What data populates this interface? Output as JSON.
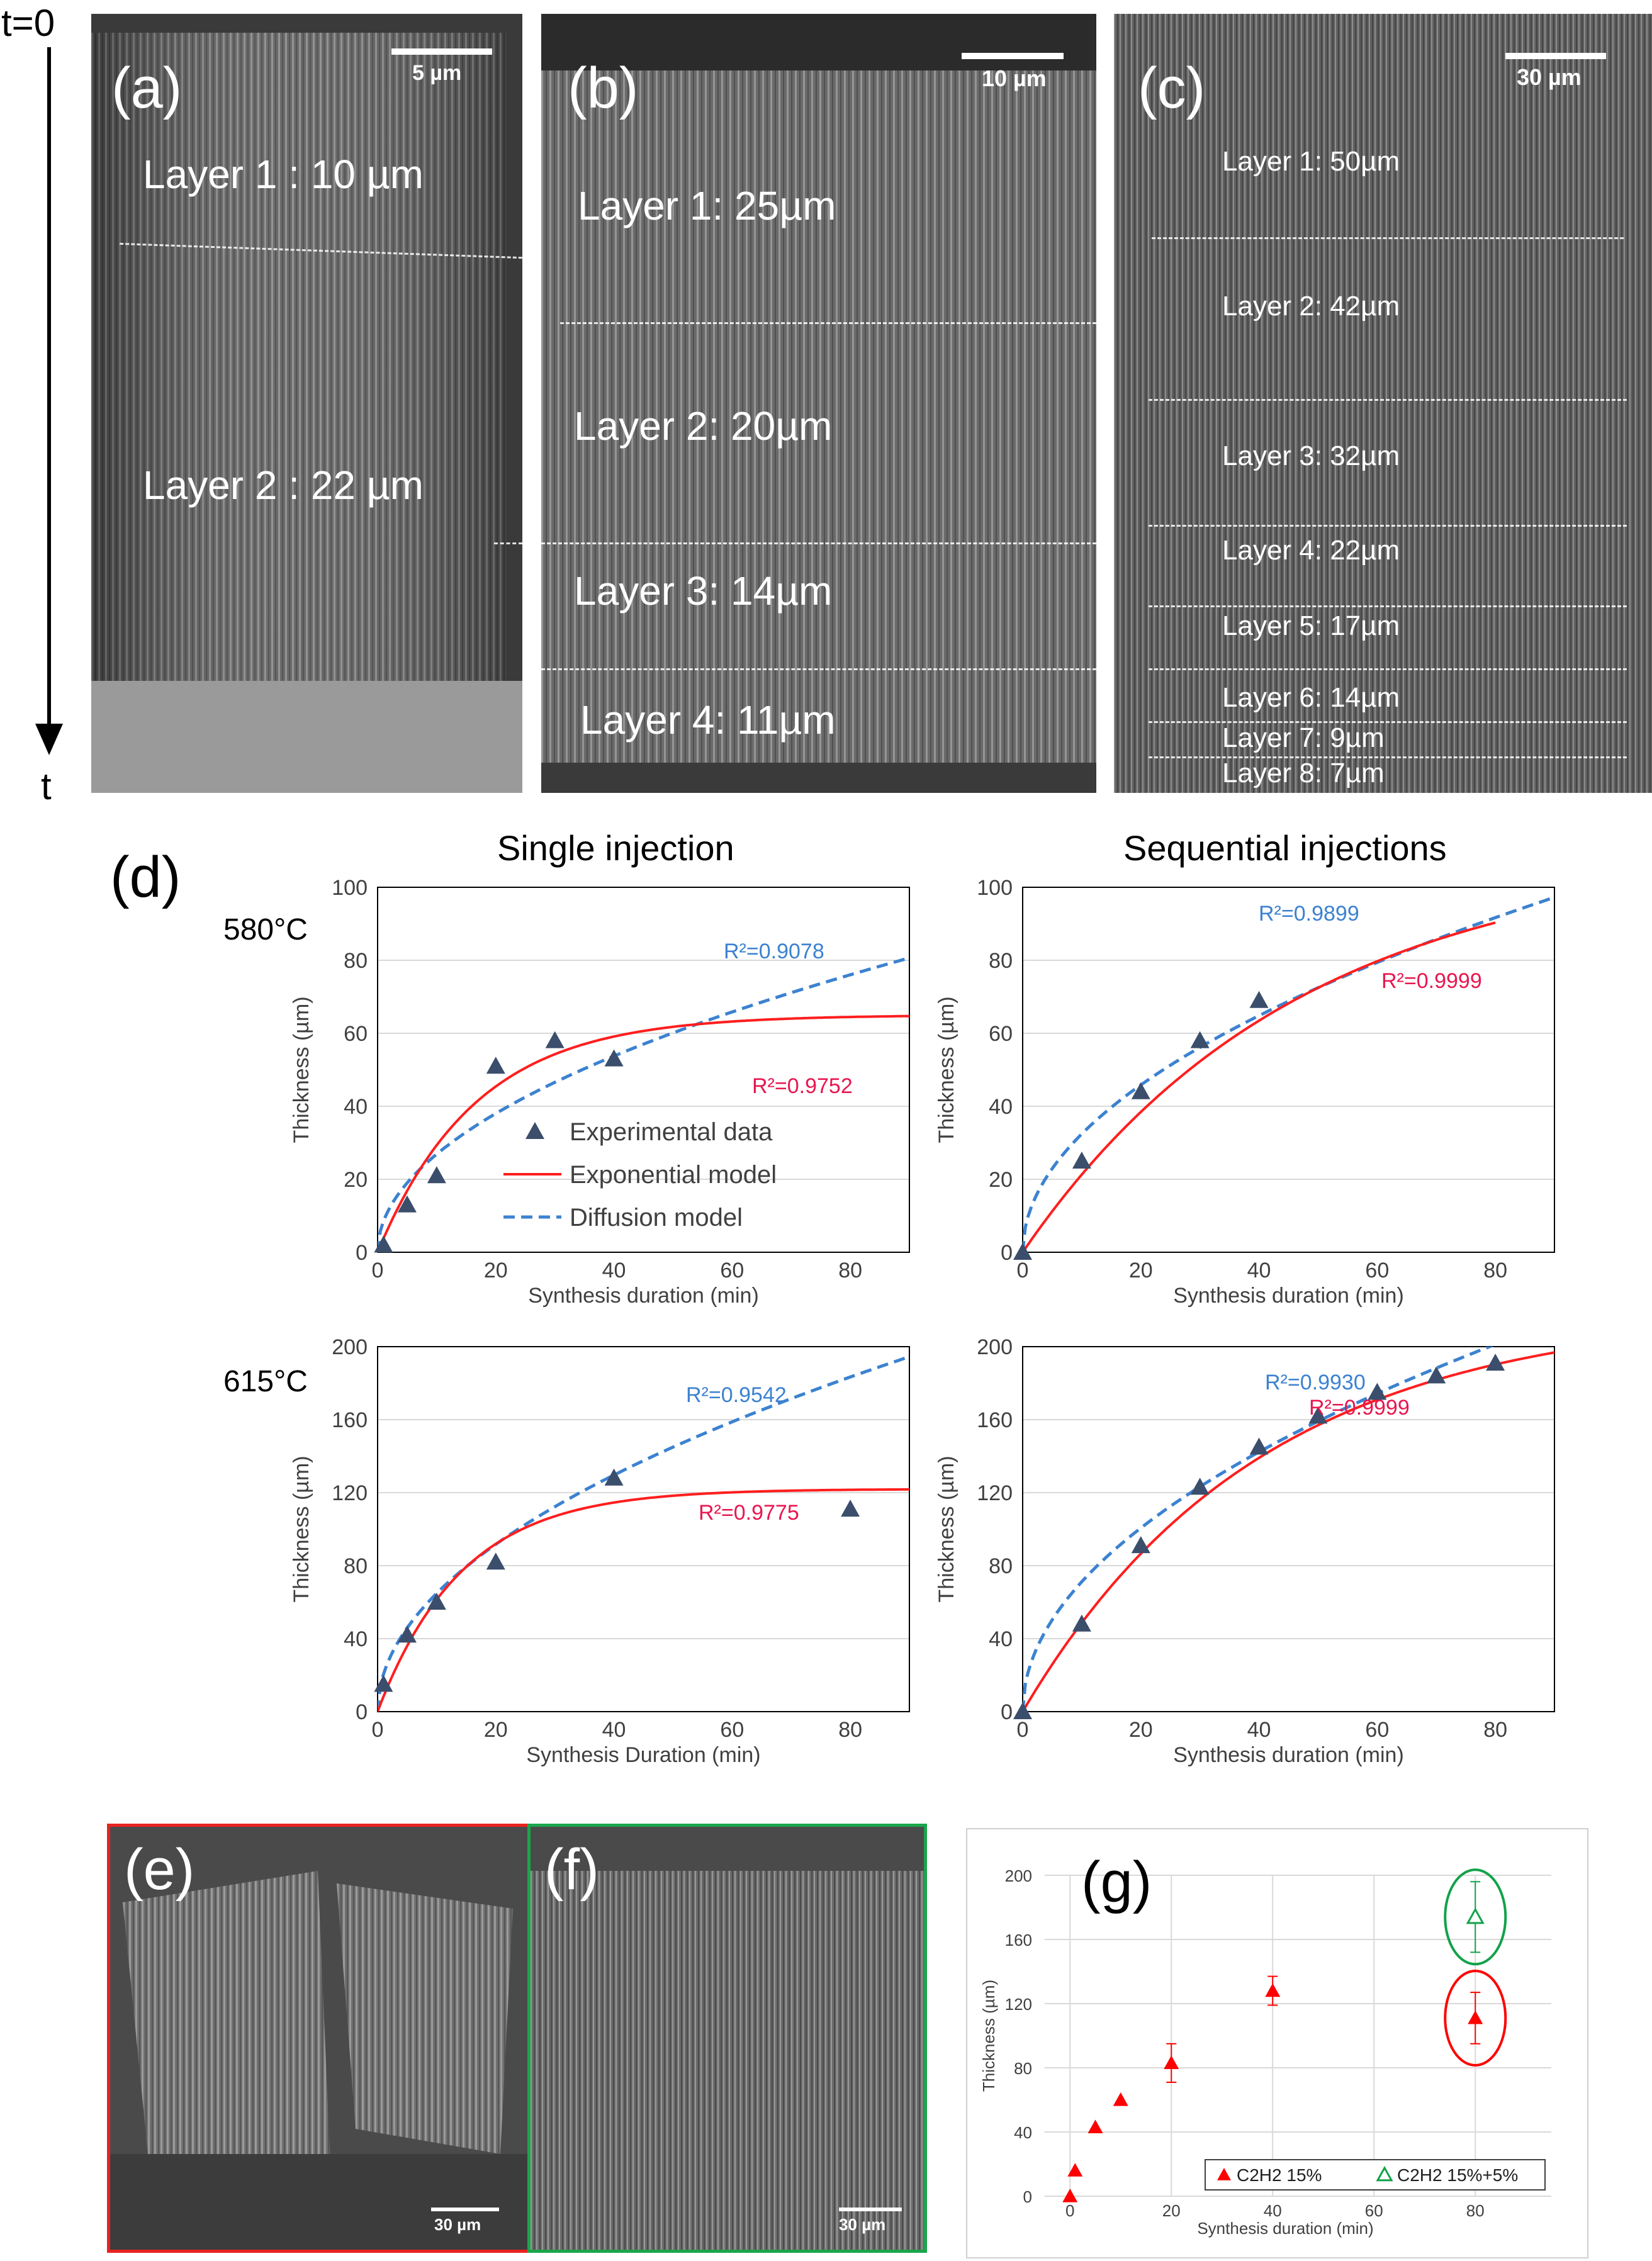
{
  "time_axis": {
    "start": "t=0",
    "end": "t"
  },
  "panel_a": {
    "label": "(a)",
    "scale": "5 µm",
    "layers": [
      "Layer 1 : 10 µm",
      "Layer 2 : 22 µm"
    ]
  },
  "panel_b": {
    "label": "(b)",
    "scale": "10 µm",
    "layers": [
      "Layer 1: 25µm",
      "Layer 2: 20µm",
      "Layer 3: 14µm",
      "Layer 4: 11µm"
    ]
  },
  "panel_c": {
    "label": "(c)",
    "scale": "30 µm",
    "layers": [
      "Layer 1: 50µm",
      "Layer 2: 42µm",
      "Layer 3: 32µm",
      "Layer 4: 22µm",
      "Layer 5: 17µm",
      "Layer 6: 14µm",
      "Layer 7: 9µm",
      "Layer 8: 7µm"
    ]
  },
  "panel_d": {
    "label": "(d)",
    "col_titles": [
      "Single injection",
      "Sequential injections"
    ],
    "row_temps": [
      "580°C",
      "615°C"
    ]
  },
  "panel_e": {
    "label": "(e)",
    "scale": "30 µm",
    "frame_color": "#e8231f"
  },
  "panel_f": {
    "label": "(f)",
    "scale": "30 µm",
    "frame_color": "#1aa64a"
  },
  "panel_g": {
    "label": "(g)"
  },
  "colors": {
    "marker": "#3b4e6b",
    "exponential": "#ff1e1e",
    "diffusion": "#3c82d0",
    "r2_exp": "#e8174f",
    "r2_diff": "#3c82d0",
    "g_red": "#ff0000",
    "g_green": "#12a24a"
  },
  "chart_data": [
    {
      "id": "d-580-single",
      "type": "scatter",
      "xlabel": "Synthesis duration (min)",
      "ylabel": "Thickness (µm)",
      "xlim": [
        0,
        90
      ],
      "ylim": [
        0,
        100
      ],
      "xticks": [
        0,
        20,
        40,
        60,
        80
      ],
      "yticks": [
        0,
        20,
        40,
        60,
        80,
        100
      ],
      "points": [
        [
          1,
          2
        ],
        [
          5,
          13
        ],
        [
          10,
          21
        ],
        [
          20,
          51
        ],
        [
          30,
          58
        ],
        [
          40,
          53
        ]
      ],
      "exp_model": {
        "A": 65,
        "k": 0.06
      },
      "diff_model": {
        "a": 8.5
      },
      "r2_diffusion": "R²=0.9078",
      "r2_exponential": "R²=0.9752",
      "legend": [
        "Experimental data",
        "Exponential model",
        "Diffusion model"
      ]
    },
    {
      "id": "d-580-seq",
      "type": "scatter",
      "xlabel": "Synthesis duration (min)",
      "ylabel": "Thickness (µm)",
      "xlim": [
        0,
        90
      ],
      "ylim": [
        0,
        100
      ],
      "xticks": [
        0,
        20,
        40,
        60,
        80
      ],
      "yticks": [
        0,
        20,
        40,
        60,
        80,
        100
      ],
      "points": [
        [
          0,
          0
        ],
        [
          10,
          25
        ],
        [
          20,
          44
        ],
        [
          30,
          58
        ],
        [
          40,
          69
        ]
      ],
      "exp_model": {
        "A": 110,
        "k": 0.0215,
        "xmax": 80
      },
      "diff_model": {
        "a": 10.25
      },
      "r2_diffusion": "R²=0.9899",
      "r2_exponential": "R²=0.9999"
    },
    {
      "id": "d-615-single",
      "type": "scatter",
      "xlabel": "Synthesis Duration (min)",
      "ylabel": "Thickness (µm)",
      "xlim": [
        0,
        90
      ],
      "ylim": [
        0,
        200
      ],
      "xticks": [
        0,
        20,
        40,
        60,
        80
      ],
      "yticks": [
        0,
        40,
        80,
        120,
        160,
        200
      ],
      "points": [
        [
          1,
          15
        ],
        [
          5,
          42
        ],
        [
          10,
          60
        ],
        [
          20,
          82
        ],
        [
          40,
          128
        ],
        [
          80,
          111
        ]
      ],
      "exp_model": {
        "A": 122,
        "k": 0.07
      },
      "diff_model": {
        "a": 20.5
      },
      "r2_diffusion": "R²=0.9542",
      "r2_exponential": "R²=0.9775"
    },
    {
      "id": "d-615-seq",
      "type": "scatter",
      "xlabel": "Synthesis duration (min)",
      "ylabel": "Thickness (µm)",
      "xlim": [
        0,
        90
      ],
      "ylim": [
        0,
        200
      ],
      "xticks": [
        0,
        20,
        40,
        60,
        80
      ],
      "yticks": [
        0,
        40,
        80,
        120,
        160,
        200
      ],
      "points": [
        [
          0,
          0
        ],
        [
          10,
          48
        ],
        [
          20,
          91
        ],
        [
          30,
          123
        ],
        [
          40,
          145
        ],
        [
          50,
          162
        ],
        [
          60,
          175
        ],
        [
          70,
          184
        ],
        [
          80,
          191
        ]
      ],
      "exp_model": {
        "A": 220,
        "k": 0.025
      },
      "diff_model": {
        "a": 22.5
      },
      "r2_diffusion": "R²=0.9930",
      "r2_exponential": "R²=0.9999"
    },
    {
      "id": "g",
      "type": "scatter",
      "xlabel": "Synthesis duration (min)",
      "ylabel": "Thickness (µm)",
      "xlim": [
        -5,
        95
      ],
      "ylim": [
        0,
        200
      ],
      "xticks": [
        0,
        20,
        40,
        60,
        80
      ],
      "yticks": [
        0,
        40,
        80,
        120,
        160,
        200
      ],
      "series": [
        {
          "name": "C2H2 15%",
          "points": [
            [
              0,
              0
            ],
            [
              1,
              16
            ],
            [
              5,
              43
            ],
            [
              10,
              60
            ],
            [
              20,
              83
            ],
            [
              40,
              128
            ],
            [
              80,
              111
            ]
          ],
          "errors": [
            0,
            0,
            0,
            0,
            12,
            9,
            16
          ]
        },
        {
          "name": "C2H2 15%+5%",
          "points": [
            [
              80,
              174
            ]
          ],
          "errors": [
            22
          ]
        }
      ]
    }
  ]
}
